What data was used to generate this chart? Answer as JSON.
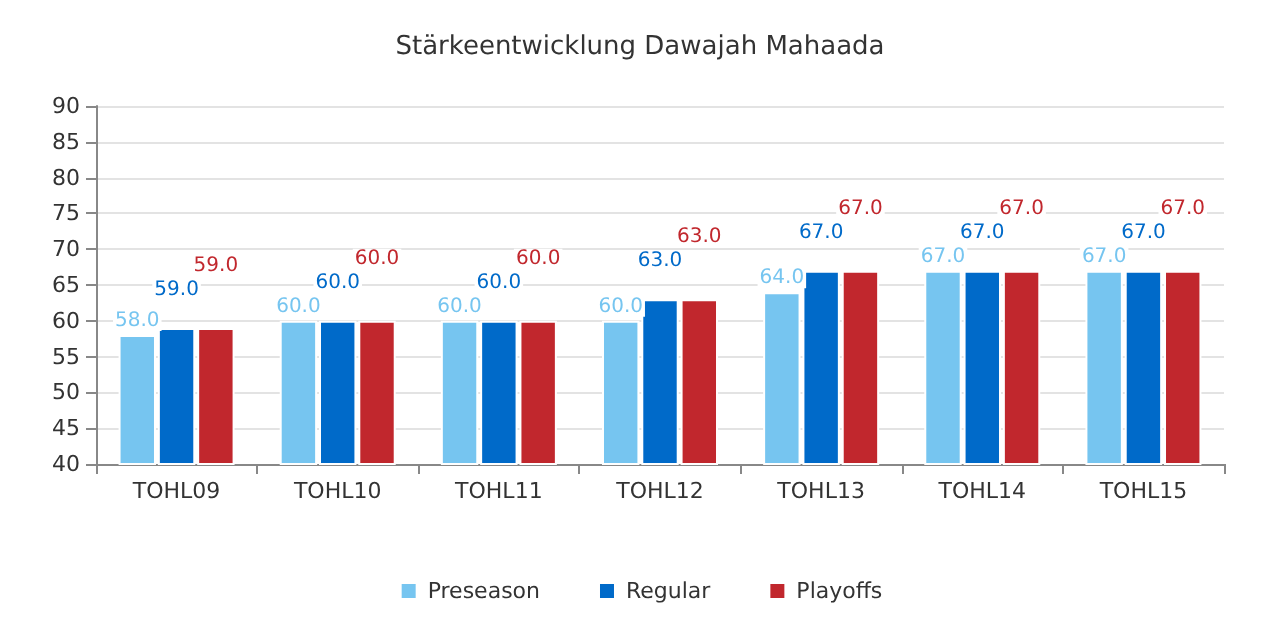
{
  "chart_data": {
    "type": "bar",
    "title": "Stärkeentwicklung Dawajah Mahaada",
    "categories": [
      "TOHL09",
      "TOHL10",
      "TOHL11",
      "TOHL12",
      "TOHL13",
      "TOHL14",
      "TOHL15"
    ],
    "series": [
      {
        "name": "Preseason",
        "color": "#76c5f0",
        "values": [
          58,
          60,
          60,
          60,
          64,
          67,
          67
        ],
        "value_labels": [
          "58.0",
          "60.0",
          "60.0",
          "60.0",
          "64.0",
          "67.0",
          "67.0"
        ]
      },
      {
        "name": "Regular",
        "color": "#006ac9",
        "values": [
          59,
          60,
          60,
          63,
          67,
          67,
          67
        ],
        "value_labels": [
          "59.0",
          "60.0",
          "60.0",
          "63.0",
          "67.0",
          "67.0",
          "67.0"
        ]
      },
      {
        "name": "Playoffs",
        "color": "#c1272d",
        "values": [
          59,
          60,
          60,
          63,
          67,
          67,
          67
        ],
        "value_labels": [
          "59.0",
          "60.0",
          "60.0",
          "63.0",
          "67.0",
          "67.0",
          "67.0"
        ]
      }
    ],
    "ylim": [
      40,
      90
    ],
    "yticks": [
      40,
      45,
      50,
      55,
      60,
      65,
      70,
      75,
      80,
      85,
      90
    ],
    "grid": "y",
    "legend": "bottom"
  }
}
